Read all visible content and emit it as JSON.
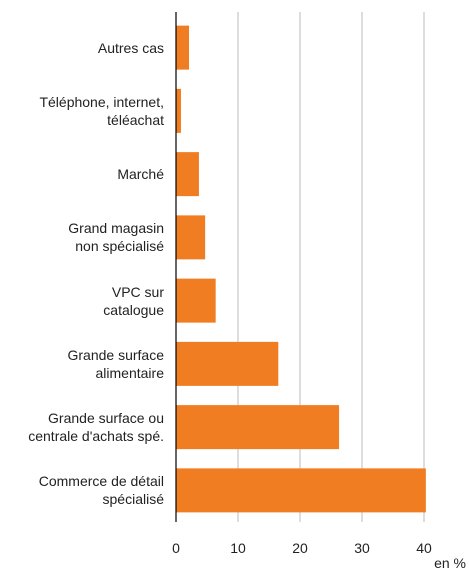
{
  "chart_data": {
    "type": "bar",
    "orientation": "horizontal",
    "categories": [
      "Autres cas",
      "Téléphone, internet,\ntéléachat",
      "Marché",
      "Grand magasin\nnon spécialisé",
      "VPC sur\ncatalogue",
      "Grande surface\nalimentaire",
      "Grande surface ou\ncentrale d'achats spé.",
      "Commerce de détail\nspécialisé"
    ],
    "values": [
      2.1,
      0.8,
      3.7,
      4.7,
      6.4,
      16.5,
      26.3,
      40.3
    ],
    "color": "#f07d22",
    "xlim": [
      0,
      45
    ],
    "xticks": [
      0,
      10,
      20,
      30,
      40
    ],
    "xlabel": "en %",
    "grid": true
  }
}
